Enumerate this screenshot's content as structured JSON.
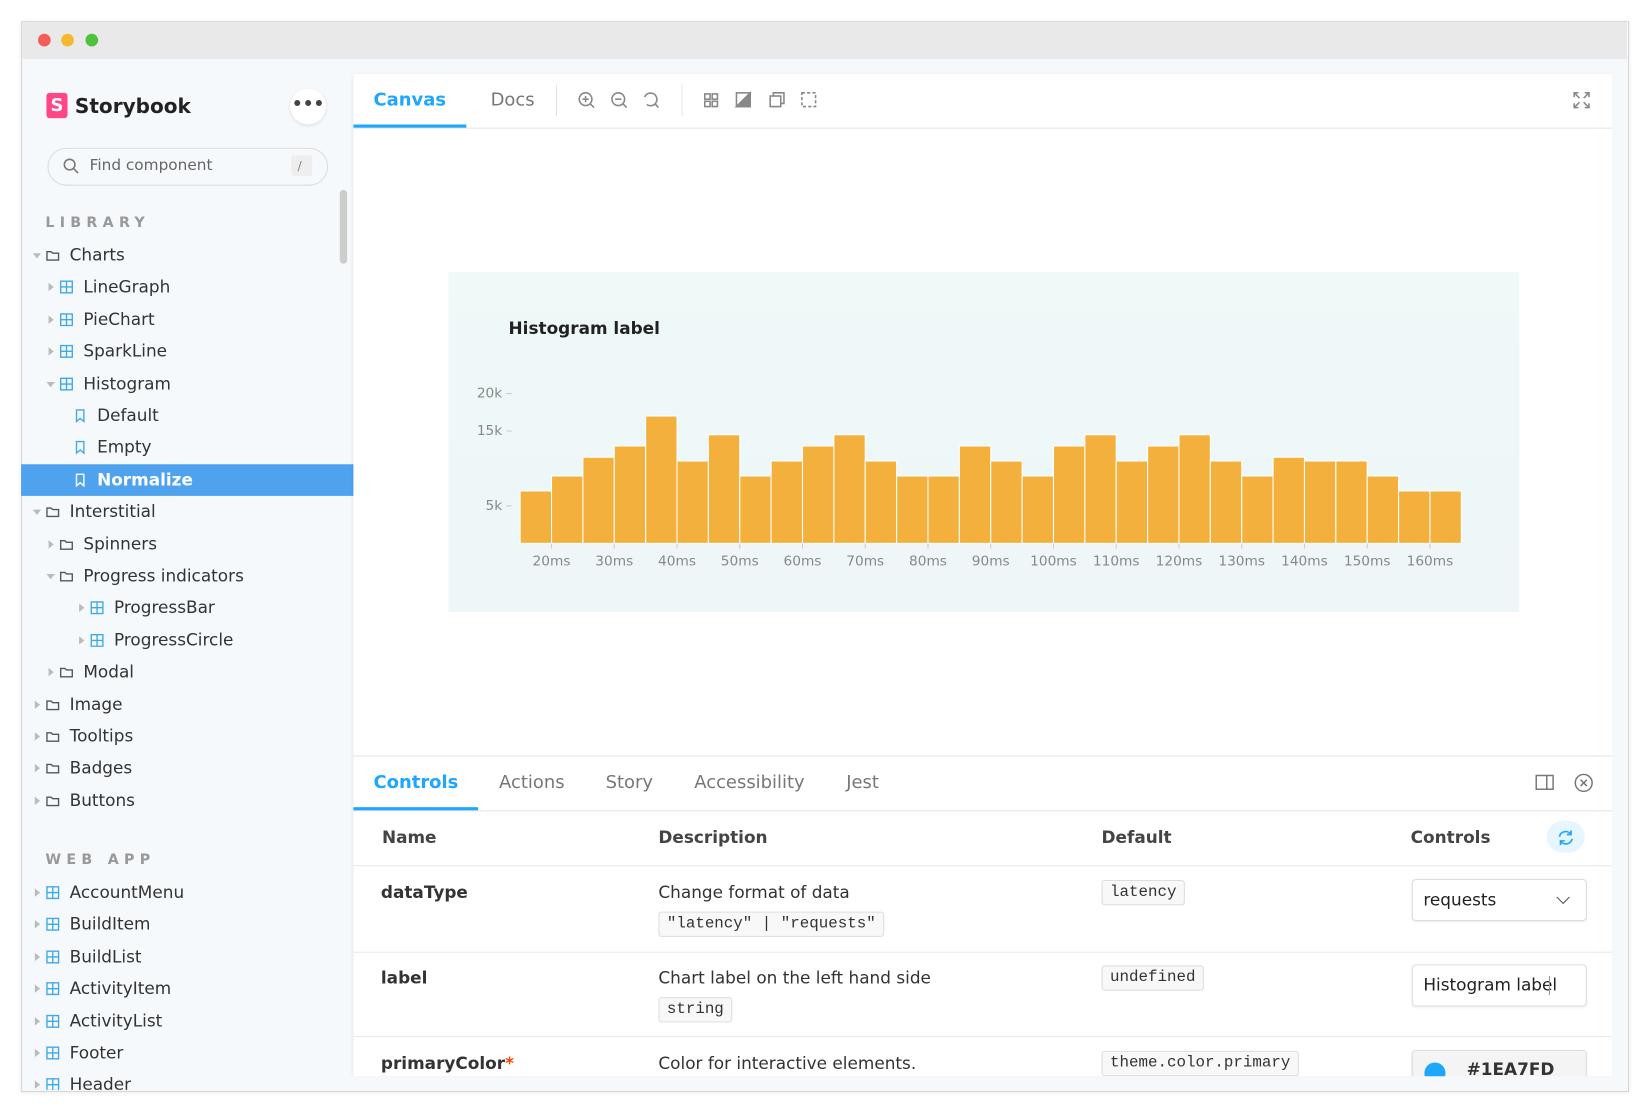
{
  "sidebar": {
    "brand": "Storybook",
    "search": {
      "placeholder": "Find component",
      "shortcut": "/"
    },
    "sections": [
      {
        "title": "LIBRARY",
        "items": [
          {
            "label": "Charts",
            "kind": "folder",
            "children": [
              {
                "label": "LineGraph",
                "kind": "component"
              },
              {
                "label": "PieChart",
                "kind": "component"
              },
              {
                "label": "SparkLine",
                "kind": "component"
              },
              {
                "label": "Histogram",
                "kind": "component",
                "children": [
                  {
                    "label": "Default",
                    "kind": "story"
                  },
                  {
                    "label": "Empty",
                    "kind": "story"
                  },
                  {
                    "label": "Normalize",
                    "kind": "story",
                    "selected": true
                  }
                ]
              }
            ]
          },
          {
            "label": "Interstitial",
            "kind": "folder",
            "children": [
              {
                "label": "Spinners",
                "kind": "folder"
              },
              {
                "label": "Progress indicators",
                "kind": "folder",
                "children": [
                  {
                    "label": "ProgressBar",
                    "kind": "component"
                  },
                  {
                    "label": "ProgressCircle",
                    "kind": "component"
                  }
                ]
              },
              {
                "label": "Modal",
                "kind": "folder"
              }
            ]
          },
          {
            "label": "Image",
            "kind": "folder"
          },
          {
            "label": "Tooltips",
            "kind": "folder"
          },
          {
            "label": "Badges",
            "kind": "folder"
          },
          {
            "label": "Buttons",
            "kind": "folder"
          }
        ]
      },
      {
        "title": "WEB APP",
        "items": [
          {
            "label": "AccountMenu",
            "kind": "component"
          },
          {
            "label": "BuildItem",
            "kind": "component"
          },
          {
            "label": "BuildList",
            "kind": "component"
          },
          {
            "label": "ActivityItem",
            "kind": "component"
          },
          {
            "label": "ActivityList",
            "kind": "component"
          },
          {
            "label": "Footer",
            "kind": "component"
          },
          {
            "label": "Header",
            "kind": "component"
          }
        ]
      }
    ]
  },
  "toolbar": {
    "tabs": [
      "Canvas",
      "Docs"
    ],
    "active_tab": 0
  },
  "chart_data": {
    "type": "histogram",
    "title": "Histogram label",
    "bins": [
      15,
      20,
      25,
      30,
      35,
      40,
      45,
      50,
      55,
      60,
      65,
      70,
      75,
      80,
      85,
      90,
      95,
      100,
      105,
      110,
      115,
      120,
      125,
      130,
      135,
      140,
      145,
      150,
      155,
      160,
      165
    ],
    "values": [
      7000,
      9000,
      11500,
      13000,
      17000,
      11000,
      14500,
      9000,
      11000,
      13000,
      14500,
      11000,
      9000,
      9000,
      13000,
      11000,
      9000,
      13000,
      14500,
      11000,
      13000,
      14500,
      11000,
      9000,
      11500,
      11000,
      11000,
      9000,
      7000,
      7000
    ],
    "color": "#f3b03d",
    "xlim": [
      15,
      165
    ],
    "xticks": [
      {
        "value": 20,
        "label": "20ms"
      },
      {
        "value": 30,
        "label": "30ms"
      },
      {
        "value": 40,
        "label": "40ms"
      },
      {
        "value": 50,
        "label": "50ms"
      },
      {
        "value": 60,
        "label": "60ms"
      },
      {
        "value": 70,
        "label": "70ms"
      },
      {
        "value": 80,
        "label": "80ms"
      },
      {
        "value": 90,
        "label": "90ms"
      },
      {
        "value": 100,
        "label": "100ms"
      },
      {
        "value": 110,
        "label": "110ms"
      },
      {
        "value": 120,
        "label": "120ms"
      },
      {
        "value": 130,
        "label": "130ms"
      },
      {
        "value": 140,
        "label": "140ms"
      },
      {
        "value": 150,
        "label": "150ms"
      },
      {
        "value": 160,
        "label": "160ms"
      }
    ],
    "ylim": [
      0,
      20000
    ],
    "yticks": [
      {
        "value": 5000,
        "label": "5k"
      },
      {
        "value": 15000,
        "label": "15k"
      },
      {
        "value": 20000,
        "label": "20k"
      }
    ]
  },
  "addons": {
    "tabs": [
      "Controls",
      "Actions",
      "Story",
      "Accessibility",
      "Jest"
    ],
    "active_tab": 0,
    "table": {
      "columns": [
        "Name",
        "Description",
        "Default",
        "Controls"
      ],
      "rows": [
        {
          "name": "dataType",
          "description": "Change format of data",
          "type": "\"latency\" | \"requests\"",
          "default": "latency",
          "control": {
            "kind": "select",
            "value": "requests"
          }
        },
        {
          "name": "label",
          "description": "Chart label on the left hand side",
          "type": "string",
          "default": "undefined",
          "control": {
            "kind": "text",
            "value": "Histogram label"
          }
        },
        {
          "name": "primaryColor",
          "required": "*",
          "description": "Color for interactive elements.",
          "default": "theme.color.primary",
          "control": {
            "kind": "color",
            "value": "#1EA7FD"
          }
        }
      ]
    }
  }
}
